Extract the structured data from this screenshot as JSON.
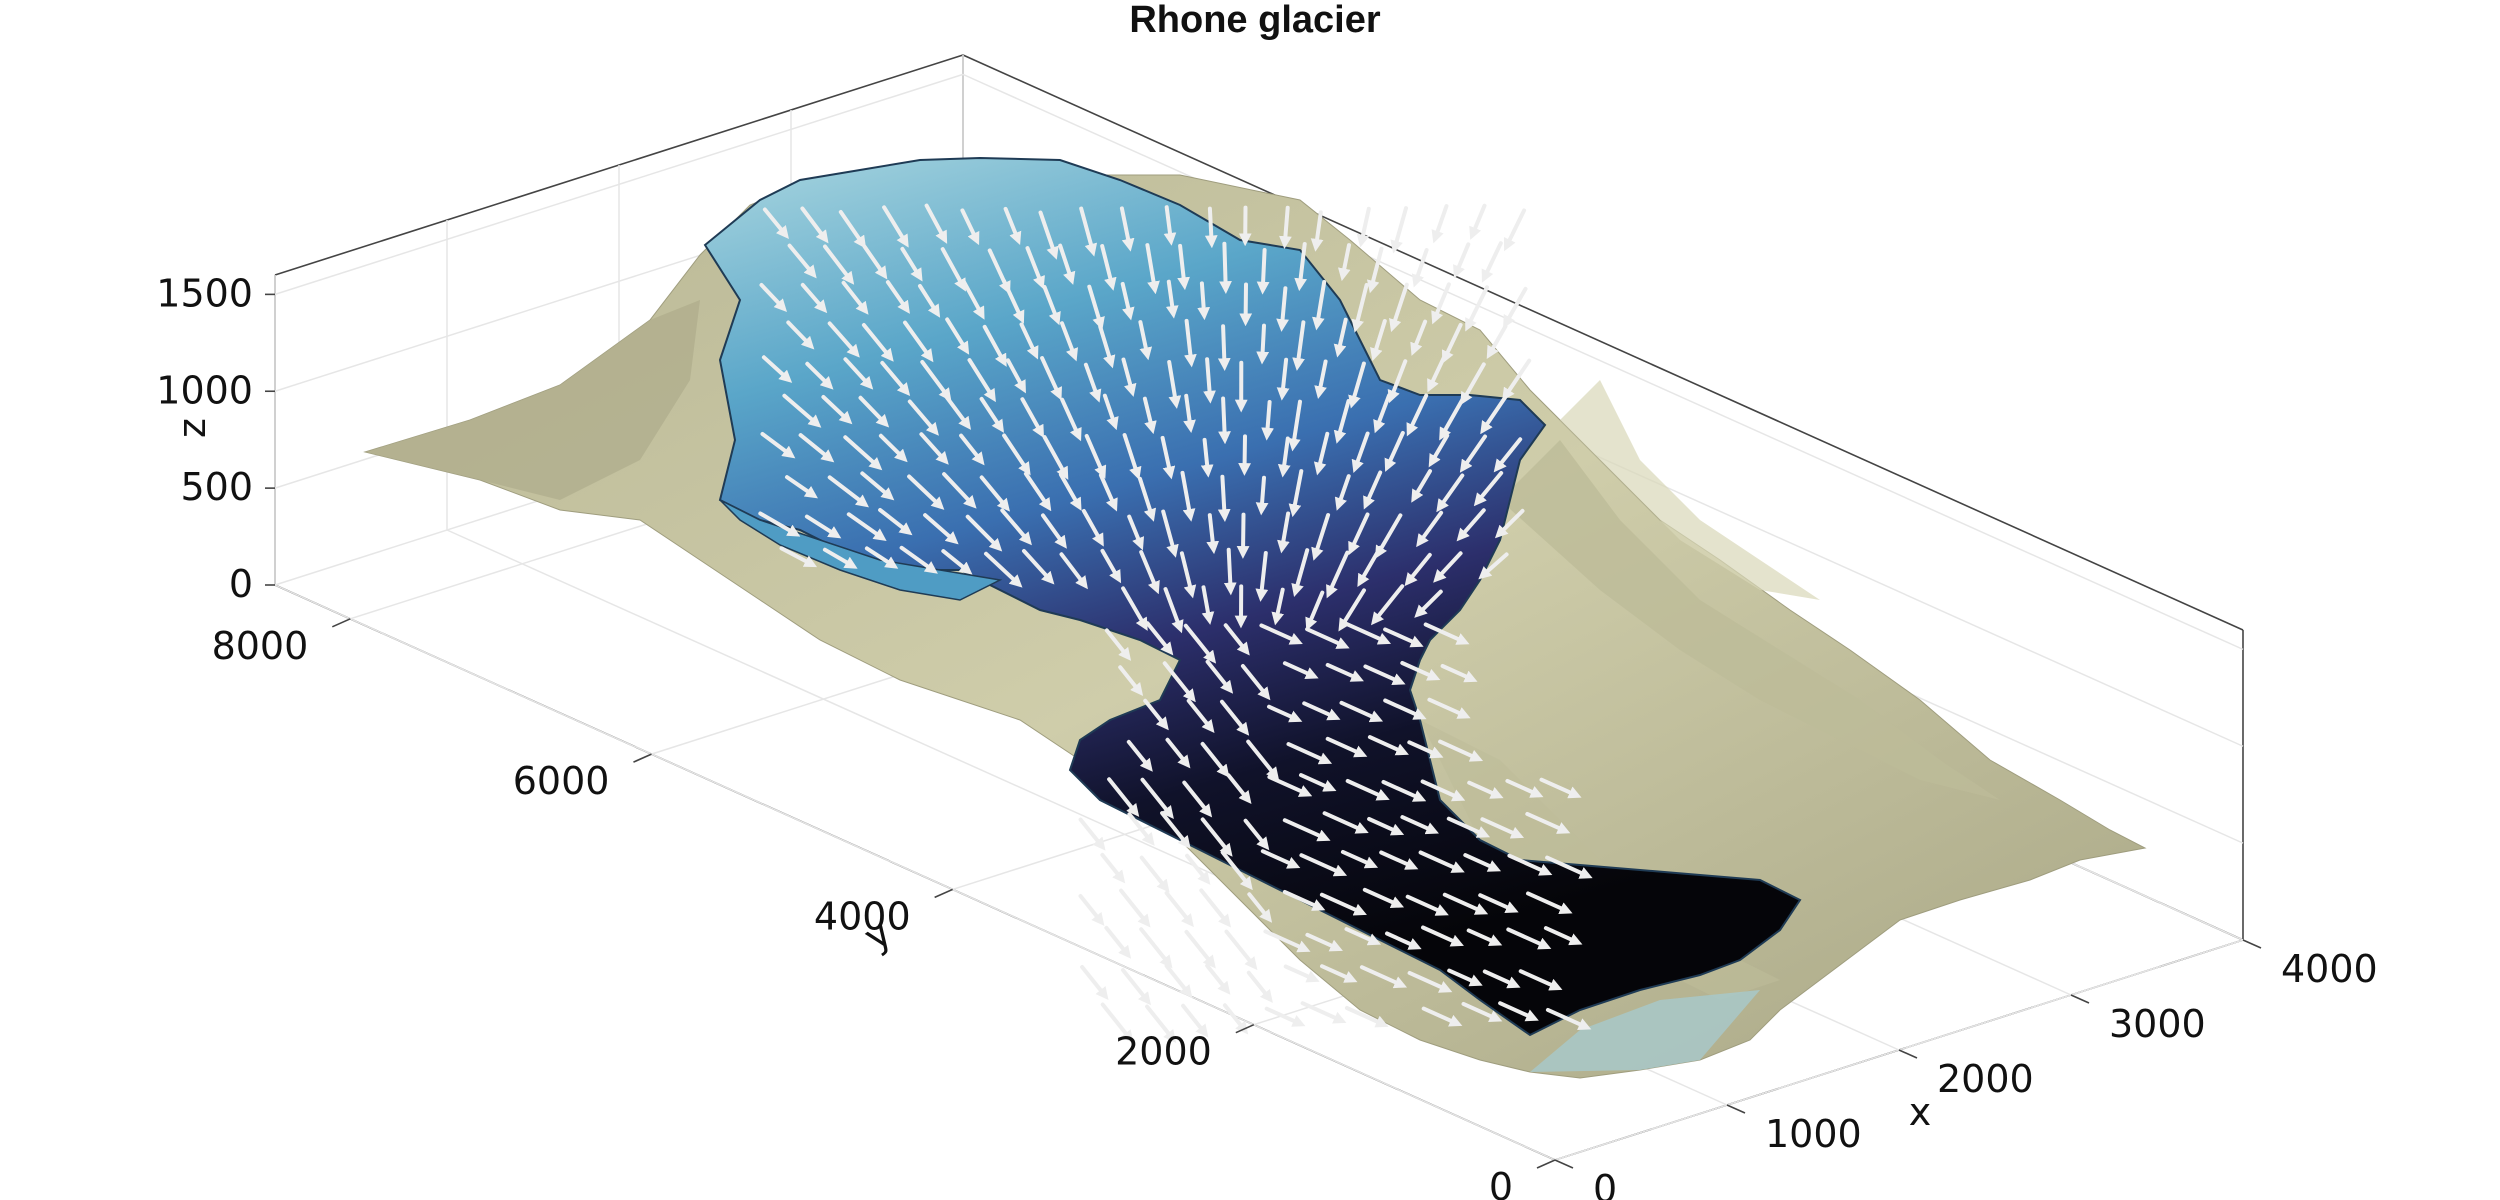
{
  "chart_data": {
    "type": "surface",
    "title": "Rhone glacier",
    "xlabel": "x",
    "ylabel": "y",
    "zlabel": "z",
    "xlim": [
      0,
      4000
    ],
    "ylim": [
      0,
      8500
    ],
    "zlim": [
      0,
      1600
    ],
    "x_ticks": [
      0,
      1000,
      2000,
      3000,
      4000
    ],
    "y_ticks": [
      0,
      2000,
      4000,
      6000,
      8000
    ],
    "z_ticks": [
      0,
      500,
      1000,
      1500
    ],
    "grid": true,
    "series": [
      {
        "kind": "bedrock-surface",
        "color": "#c8c7a2"
      },
      {
        "kind": "ice-surface",
        "colors": [
          "#a9d6df",
          "#3a88b9",
          "#343e8a",
          "#06070f"
        ]
      },
      {
        "kind": "velocity-arrows",
        "color": "#eeeeee"
      }
    ]
  }
}
